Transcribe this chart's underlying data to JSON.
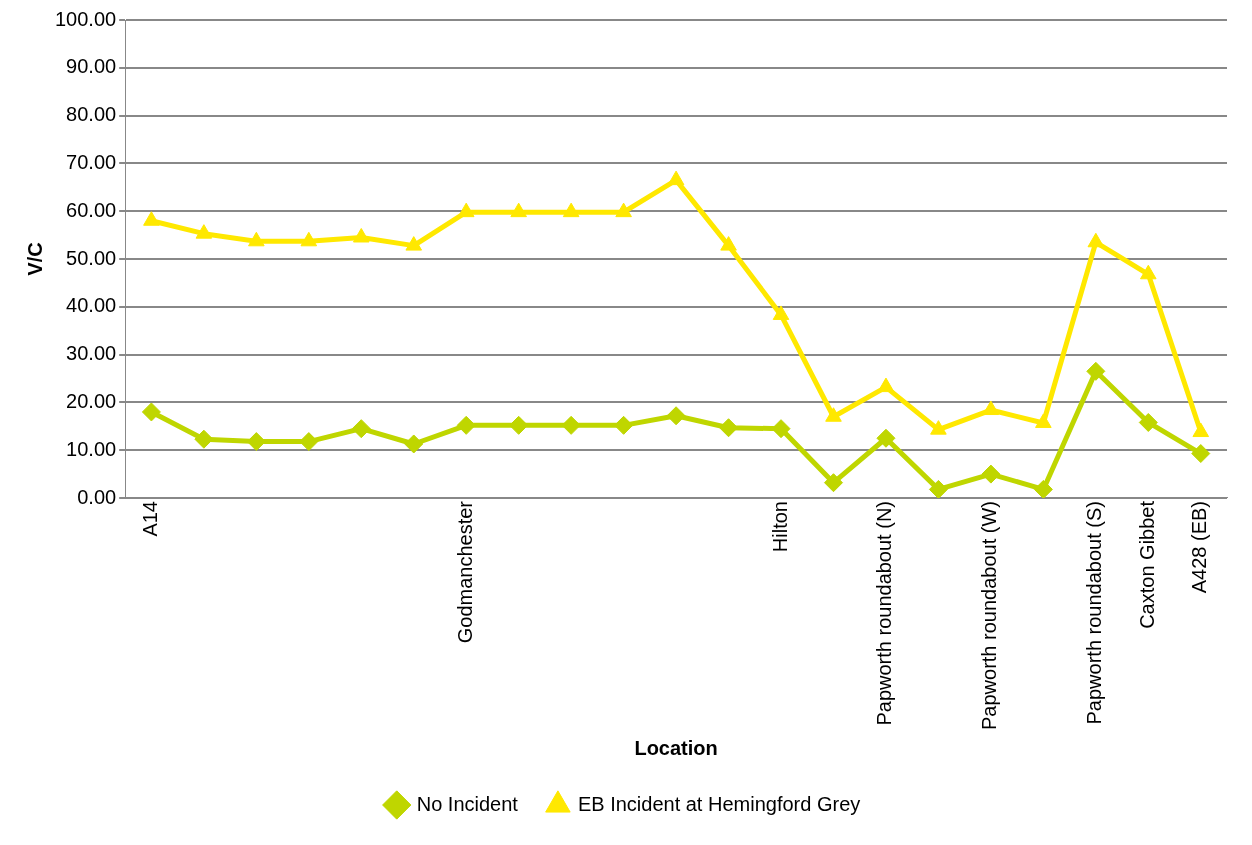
{
  "chart_data": {
    "type": "line",
    "xlabel": "Location",
    "ylabel": "V/C",
    "categories": [
      "A14",
      null,
      null,
      null,
      null,
      null,
      "Godmanchester",
      null,
      null,
      null,
      null,
      null,
      "Hilton",
      null,
      "Papworth roundabout (N)",
      null,
      "Papworth roundabout (W)",
      null,
      "Papworth roundabout (S)",
      "Caxton Gibbet",
      "A428 (EB)"
    ],
    "series": [
      {
        "name": "No Incident",
        "color": "#bfd600",
        "marker": "diamond",
        "values": [
          18,
          12.3,
          11.8,
          11.8,
          14.5,
          11.3,
          15.2,
          15.2,
          15.2,
          15.2,
          17.2,
          14.7,
          14.5,
          3.2,
          12.5,
          1.8,
          5,
          1.8,
          26.5,
          15.8,
          9.3
        ]
      },
      {
        "name": "EB Incident at Hemingford Grey",
        "color": "#ffe800",
        "marker": "triangle",
        "values": [
          58,
          55.3,
          53.7,
          53.7,
          54.5,
          52.8,
          59.8,
          59.8,
          59.8,
          59.8,
          66.5,
          52.8,
          38.3,
          17,
          23.2,
          14.3,
          18.4,
          15.7,
          53.5,
          46.8,
          13.8
        ]
      }
    ],
    "ylim": [
      0,
      100
    ],
    "yticks": [
      {
        "value": 0,
        "label": "0.00"
      },
      {
        "value": 10,
        "label": "10.00"
      },
      {
        "value": 20,
        "label": "20.00"
      },
      {
        "value": 30,
        "label": "30.00"
      },
      {
        "value": 40,
        "label": "40.00"
      },
      {
        "value": 50,
        "label": "50.00"
      },
      {
        "value": 60,
        "label": "60.00"
      },
      {
        "value": 70,
        "label": "70.00"
      },
      {
        "value": 80,
        "label": "80.00"
      },
      {
        "value": 90,
        "label": "90.00"
      },
      {
        "value": 100,
        "label": "100.00"
      }
    ],
    "grid": "y",
    "legend": "bottom",
    "line_style": "solid"
  }
}
